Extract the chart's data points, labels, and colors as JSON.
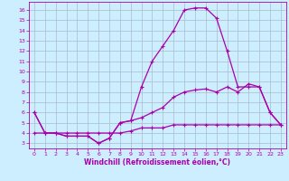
{
  "title": "",
  "xlabel": "Windchill (Refroidissement éolien,°C)",
  "ylabel": "",
  "bg_color": "#cceeff",
  "line_color": "#aa00aa",
  "grid_color": "#aabbcc",
  "x_ticks": [
    0,
    1,
    2,
    3,
    4,
    5,
    6,
    7,
    8,
    9,
    10,
    11,
    12,
    13,
    14,
    15,
    16,
    17,
    18,
    19,
    20,
    21,
    22,
    23
  ],
  "y_ticks": [
    3,
    4,
    5,
    6,
    7,
    8,
    9,
    10,
    11,
    12,
    13,
    14,
    15,
    16
  ],
  "ylim": [
    2.5,
    16.8
  ],
  "xlim": [
    -0.5,
    23.5
  ],
  "series1_x": [
    0,
    1,
    2,
    3,
    4,
    5,
    6,
    7,
    8,
    9,
    10,
    11,
    12,
    13,
    14,
    15,
    16,
    17,
    18,
    19,
    20,
    21,
    22,
    23
  ],
  "series1_y": [
    6.0,
    4.0,
    4.0,
    3.7,
    3.7,
    3.7,
    3.0,
    3.5,
    5.0,
    5.2,
    5.5,
    6.0,
    6.5,
    7.5,
    8.0,
    8.2,
    8.3,
    8.0,
    8.5,
    8.0,
    8.8,
    8.5,
    6.0,
    4.8
  ],
  "series2_x": [
    0,
    1,
    2,
    3,
    4,
    5,
    6,
    7,
    8,
    9,
    10,
    11,
    12,
    13,
    14,
    15,
    16,
    17,
    18,
    19,
    20,
    21,
    22,
    23
  ],
  "series2_y": [
    6.0,
    4.0,
    4.0,
    3.7,
    3.7,
    3.7,
    3.0,
    3.5,
    5.0,
    5.2,
    8.5,
    11.0,
    12.5,
    14.0,
    16.0,
    16.2,
    16.2,
    15.2,
    12.0,
    8.5,
    8.5,
    8.5,
    6.0,
    4.8
  ],
  "series3_x": [
    0,
    1,
    2,
    3,
    4,
    5,
    6,
    7,
    8,
    9,
    10,
    11,
    12,
    13,
    14,
    15,
    16,
    17,
    18,
    19,
    20,
    21,
    22,
    23
  ],
  "series3_y": [
    4.0,
    4.0,
    4.0,
    4.0,
    4.0,
    4.0,
    4.0,
    4.0,
    4.0,
    4.2,
    4.5,
    4.5,
    4.5,
    4.8,
    4.8,
    4.8,
    4.8,
    4.8,
    4.8,
    4.8,
    4.8,
    4.8,
    4.8,
    4.8
  ],
  "xlabel_fontsize": 5.5,
  "tick_fontsize": 4.5,
  "lw": 0.9
}
